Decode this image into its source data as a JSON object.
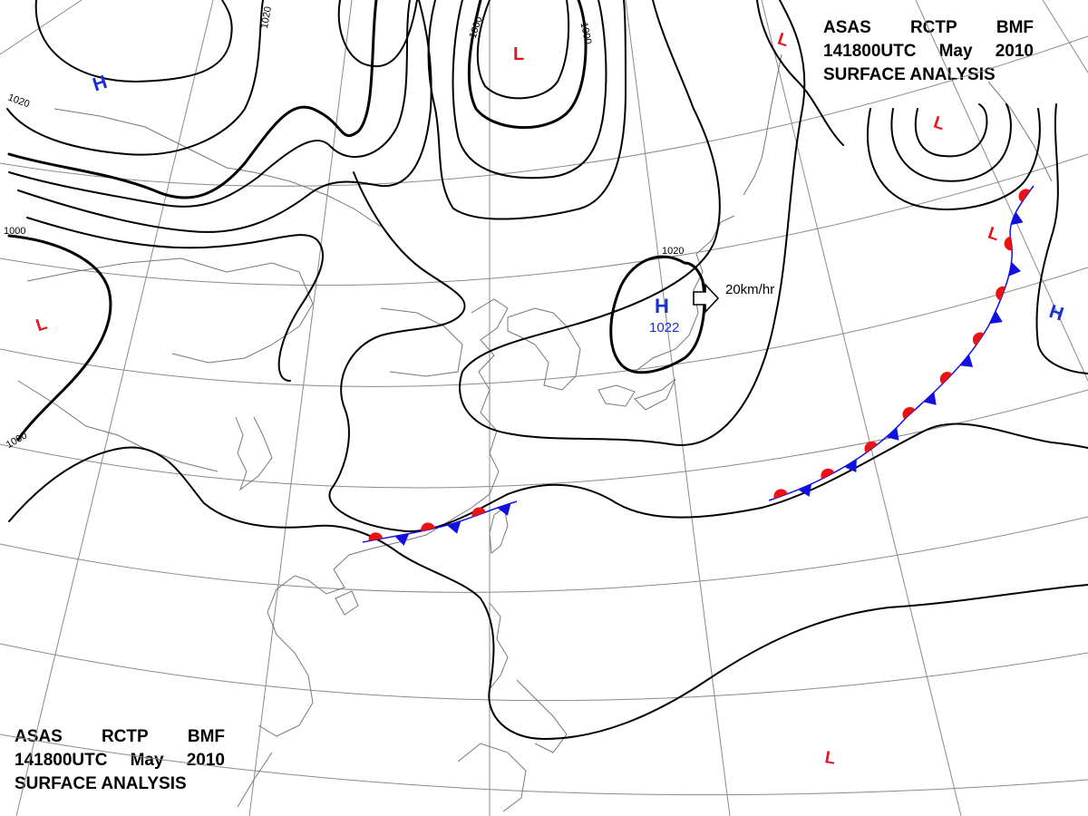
{
  "header": {
    "agency_row": [
      "ASAS",
      "RCTP",
      "BMF"
    ],
    "time_row": [
      "141800UTC",
      "May",
      "2010"
    ],
    "product": "SURFACE ANALYSIS"
  },
  "colors": {
    "high_center": "#1a2fd6",
    "low_center": "#e8141e",
    "cold_front": "#1010e0",
    "warm_front": "#ee1111",
    "isobar": "#000000",
    "coastline": "#777777",
    "grid": "#8a8a8a"
  },
  "isobar_labels": [
    "1020",
    "1000",
    "1000",
    "1020",
    "1000",
    "1000",
    "1020"
  ],
  "pressure_centers": [
    {
      "type": "H",
      "value": "1022"
    },
    {
      "type": "H",
      "value": ""
    },
    {
      "type": "H",
      "value": ""
    },
    {
      "type": "L",
      "value": ""
    },
    {
      "type": "L",
      "value": ""
    },
    {
      "type": "L",
      "value": ""
    },
    {
      "type": "L",
      "value": ""
    },
    {
      "type": "L",
      "value": ""
    },
    {
      "type": "L",
      "value": ""
    }
  ],
  "motion_arrow": {
    "label": "20km/hr"
  },
  "fronts": [
    {
      "kind": "stationary"
    },
    {
      "kind": "stationary"
    }
  ]
}
